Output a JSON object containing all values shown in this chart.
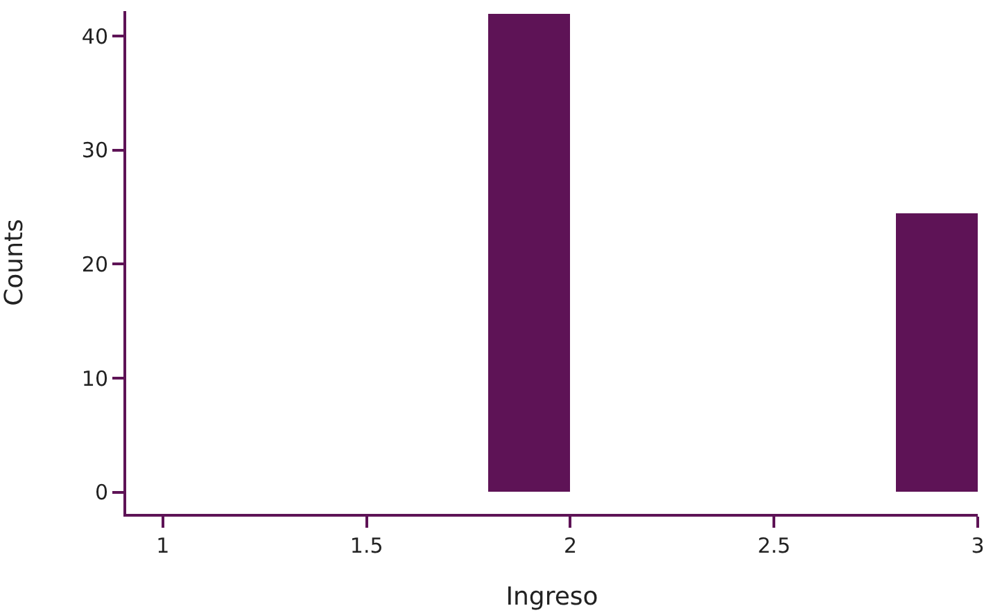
{
  "chart_data": {
    "type": "histogram",
    "xlabel": "Ingreso",
    "ylabel": "Counts",
    "bins": [
      1.0,
      1.2,
      1.4,
      1.6,
      1.8,
      2.0,
      2.2,
      2.4,
      2.6,
      2.8,
      3.0
    ],
    "values": [
      0,
      0,
      0,
      0,
      42,
      0,
      0,
      0,
      0,
      24.5
    ],
    "color": "#5e1356",
    "xlim": [
      0.91,
      3.0
    ],
    "xticks": [
      1,
      1.5,
      2,
      2.5,
      3
    ],
    "ylim": [
      -1.9,
      42.2
    ],
    "yticks": [
      0,
      10,
      20,
      30,
      40
    ]
  }
}
